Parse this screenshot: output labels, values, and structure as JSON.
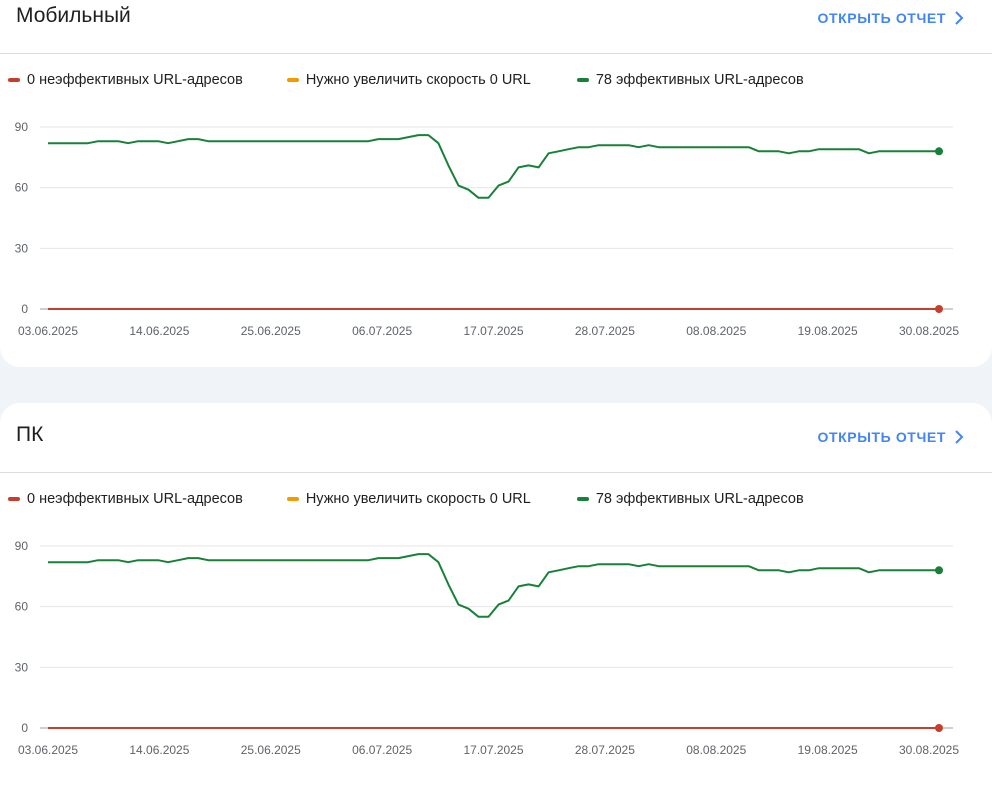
{
  "cards": [
    {
      "title": "Мобильный",
      "report_link": "ОТКРЫТЬ ОТЧЕТ",
      "legend": [
        {
          "label": "0 неэффективных URL-адресов",
          "color": "#c5402c"
        },
        {
          "label": "Нужно увеличить скорость 0 URL",
          "color": "#f29900"
        },
        {
          "label": "78 эффективных URL-адресов",
          "color": "#188038"
        }
      ]
    },
    {
      "title": "ПК",
      "report_link": "ОТКРЫТЬ ОТЧЕТ",
      "legend": [
        {
          "label": "0 неэффективных URL-адресов",
          "color": "#c5402c"
        },
        {
          "label": "Нужно увеличить скорость 0 URL",
          "color": "#f29900"
        },
        {
          "label": "78 эффективных URL-адресов",
          "color": "#188038"
        }
      ]
    }
  ],
  "icons": {
    "report_link": "chevron-right-icon"
  },
  "chart_data": [
    {
      "type": "line",
      "title": "Мобильный",
      "x_ticks": [
        "03.06.2025",
        "14.06.2025",
        "25.06.2025",
        "06.07.2025",
        "17.07.2025",
        "28.07.2025",
        "08.08.2025",
        "19.08.2025",
        "30.08.2025"
      ],
      "y_ticks": [
        0,
        30,
        60,
        90
      ],
      "ylim": [
        0,
        90
      ],
      "grid": true,
      "legend_position": "top-left",
      "x_start": "03.06.2025",
      "x_end": "30.08.2025",
      "series": [
        {
          "color": "#c5402c",
          "values": [
            0,
            0,
            0,
            0,
            0,
            0,
            0,
            0,
            0,
            0,
            0,
            0,
            0,
            0,
            0,
            0,
            0,
            0,
            0,
            0,
            0,
            0,
            0,
            0,
            0,
            0,
            0,
            0,
            0,
            0,
            0,
            0,
            0,
            0,
            0,
            0,
            0,
            0,
            0,
            0,
            0,
            0,
            0,
            0,
            0,
            0,
            0,
            0,
            0,
            0,
            0,
            0,
            0,
            0,
            0,
            0,
            0,
            0,
            0,
            0,
            0,
            0,
            0,
            0,
            0,
            0,
            0,
            0,
            0,
            0,
            0,
            0,
            0,
            0,
            0,
            0,
            0,
            0,
            0,
            0,
            0,
            0,
            0,
            0,
            0,
            0,
            0,
            0,
            0,
            0
          ]
        },
        {
          "color": "#f29900",
          "values": [
            0,
            0,
            0,
            0,
            0,
            0,
            0,
            0,
            0,
            0,
            0,
            0,
            0,
            0,
            0,
            0,
            0,
            0,
            0,
            0,
            0,
            0,
            0,
            0,
            0,
            0,
            0,
            0,
            0,
            0,
            0,
            0,
            0,
            0,
            0,
            0,
            0,
            0,
            0,
            0,
            0,
            0,
            0,
            0,
            0,
            0,
            0,
            0,
            0,
            0,
            0,
            0,
            0,
            0,
            0,
            0,
            0,
            0,
            0,
            0,
            0,
            0,
            0,
            0,
            0,
            0,
            0,
            0,
            0,
            0,
            0,
            0,
            0,
            0,
            0,
            0,
            0,
            0,
            0,
            0,
            0,
            0,
            0,
            0,
            0,
            0,
            0,
            0,
            0,
            0
          ]
        },
        {
          "color": "#188038",
          "values": [
            82,
            82,
            82,
            82,
            82,
            83,
            83,
            83,
            82,
            83,
            83,
            83,
            82,
            83,
            84,
            84,
            83,
            83,
            83,
            83,
            83,
            83,
            83,
            83,
            83,
            83,
            83,
            83,
            83,
            83,
            83,
            83,
            83,
            84,
            84,
            84,
            85,
            86,
            86,
            82,
            71,
            61,
            59,
            55,
            55,
            61,
            63,
            70,
            71,
            70,
            77,
            78,
            79,
            80,
            80,
            81,
            81,
            81,
            81,
            80,
            81,
            80,
            80,
            80,
            80,
            80,
            80,
            80,
            80,
            80,
            80,
            78,
            78,
            78,
            77,
            78,
            78,
            79,
            79,
            79,
            79,
            79,
            77,
            78,
            78,
            78,
            78,
            78,
            78,
            78
          ]
        }
      ]
    },
    {
      "type": "line",
      "title": "ПК",
      "x_ticks": [
        "03.06.2025",
        "14.06.2025",
        "25.06.2025",
        "06.07.2025",
        "17.07.2025",
        "28.07.2025",
        "08.08.2025",
        "19.08.2025",
        "30.08.2025"
      ],
      "y_ticks": [
        0,
        30,
        60,
        90
      ],
      "ylim": [
        0,
        90
      ],
      "grid": true,
      "legend_position": "top-left",
      "x_start": "03.06.2025",
      "x_end": "30.08.2025",
      "series": [
        {
          "color": "#c5402c",
          "values": [
            0,
            0,
            0,
            0,
            0,
            0,
            0,
            0,
            0,
            0,
            0,
            0,
            0,
            0,
            0,
            0,
            0,
            0,
            0,
            0,
            0,
            0,
            0,
            0,
            0,
            0,
            0,
            0,
            0,
            0,
            0,
            0,
            0,
            0,
            0,
            0,
            0,
            0,
            0,
            0,
            0,
            0,
            0,
            0,
            0,
            0,
            0,
            0,
            0,
            0,
            0,
            0,
            0,
            0,
            0,
            0,
            0,
            0,
            0,
            0,
            0,
            0,
            0,
            0,
            0,
            0,
            0,
            0,
            0,
            0,
            0,
            0,
            0,
            0,
            0,
            0,
            0,
            0,
            0,
            0,
            0,
            0,
            0,
            0,
            0,
            0,
            0,
            0,
            0,
            0
          ]
        },
        {
          "color": "#f29900",
          "values": [
            0,
            0,
            0,
            0,
            0,
            0,
            0,
            0,
            0,
            0,
            0,
            0,
            0,
            0,
            0,
            0,
            0,
            0,
            0,
            0,
            0,
            0,
            0,
            0,
            0,
            0,
            0,
            0,
            0,
            0,
            0,
            0,
            0,
            0,
            0,
            0,
            0,
            0,
            0,
            0,
            0,
            0,
            0,
            0,
            0,
            0,
            0,
            0,
            0,
            0,
            0,
            0,
            0,
            0,
            0,
            0,
            0,
            0,
            0,
            0,
            0,
            0,
            0,
            0,
            0,
            0,
            0,
            0,
            0,
            0,
            0,
            0,
            0,
            0,
            0,
            0,
            0,
            0,
            0,
            0,
            0,
            0,
            0,
            0,
            0,
            0,
            0,
            0,
            0,
            0
          ]
        },
        {
          "color": "#188038",
          "values": [
            82,
            82,
            82,
            82,
            82,
            83,
            83,
            83,
            82,
            83,
            83,
            83,
            82,
            83,
            84,
            84,
            83,
            83,
            83,
            83,
            83,
            83,
            83,
            83,
            83,
            83,
            83,
            83,
            83,
            83,
            83,
            83,
            83,
            84,
            84,
            84,
            85,
            86,
            86,
            82,
            71,
            61,
            59,
            55,
            55,
            61,
            63,
            70,
            71,
            70,
            77,
            78,
            79,
            80,
            80,
            81,
            81,
            81,
            81,
            80,
            81,
            80,
            80,
            80,
            80,
            80,
            80,
            80,
            80,
            80,
            80,
            78,
            78,
            78,
            77,
            78,
            78,
            79,
            79,
            79,
            79,
            79,
            77,
            78,
            78,
            78,
            78,
            78,
            78,
            78
          ]
        }
      ]
    }
  ]
}
